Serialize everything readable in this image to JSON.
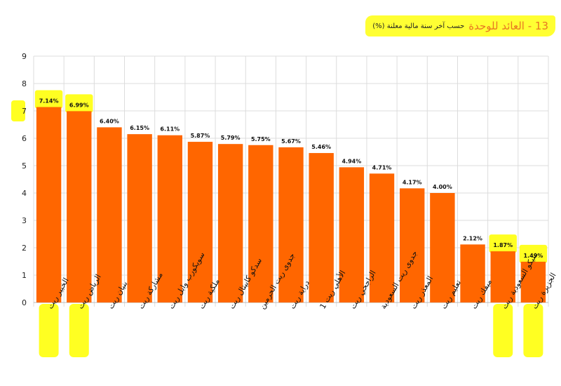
{
  "chart_data": {
    "type": "bar",
    "title": "13 - العائد للوحدة",
    "subtitle": "حسب آخر سنة مالية معلنة (%)",
    "categories": [
      "الخبير ريت",
      "الرياض ريت",
      "بنيان ريت",
      "مشاركة ريت",
      "سويكورب وابل ريت",
      "ملكية ريت",
      "سدكو كابيتال ريت",
      "جدوى ريت الحرمين",
      "دراية ريت",
      "الأهلي ريت 1",
      "الراجحي ريت",
      "جدوى ريت السعودية",
      "المعذر ريت",
      "تعليم ريت",
      "ميفك ريت",
      "سيكو السعودية ريت",
      "الجزيرة ريت"
    ],
    "values": [
      7.14,
      6.99,
      6.4,
      6.15,
      6.11,
      5.87,
      5.79,
      5.75,
      5.67,
      5.46,
      4.94,
      4.71,
      4.17,
      4.0,
      2.12,
      1.87,
      1.49
    ],
    "value_labels": [
      "7.14%",
      "6.99%",
      "6.40%",
      "6.15%",
      "6.11%",
      "5.87%",
      "5.79%",
      "5.75%",
      "5.67%",
      "5.46%",
      "4.94%",
      "4.71%",
      "4.17%",
      "4.00%",
      "2.12%",
      "1.87%",
      "1.49%"
    ],
    "highlighted_categories": [
      0,
      1,
      15,
      16
    ],
    "yticks": [
      0,
      1,
      2,
      3,
      4,
      5,
      6,
      7,
      8,
      9
    ],
    "ylim": [
      0,
      9
    ],
    "grid": true,
    "xlabel": "",
    "ylabel": "",
    "colors": {
      "bar": "#ff6600",
      "highlight": "#ffff22",
      "title": "#e87722"
    }
  }
}
